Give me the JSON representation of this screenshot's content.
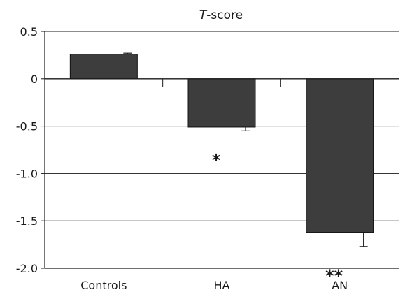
{
  "chart_data": {
    "type": "bar",
    "title": {
      "italic_part": "T",
      "rest": "-score"
    },
    "categories": [
      "Controls",
      "HA",
      "AN"
    ],
    "values": [
      0.26,
      -0.51,
      -1.62
    ],
    "error": [
      0.01,
      0.04,
      0.15
    ],
    "significance": [
      "",
      "*",
      "**"
    ],
    "ylim": [
      -2.0,
      0.5
    ],
    "yticks": [
      {
        "value": 0.5,
        "label": "0.5"
      },
      {
        "value": 0,
        "label": "0"
      },
      {
        "value": -0.5,
        "label": "-0.5"
      },
      {
        "value": -1.0,
        "label": "-1.0"
      },
      {
        "value": -1.5,
        "label": "-1.5"
      },
      {
        "value": -2.0,
        "label": "-2.0"
      }
    ],
    "grid": true,
    "bar_color": "#3d3d3d",
    "xlabel": "",
    "ylabel": ""
  }
}
